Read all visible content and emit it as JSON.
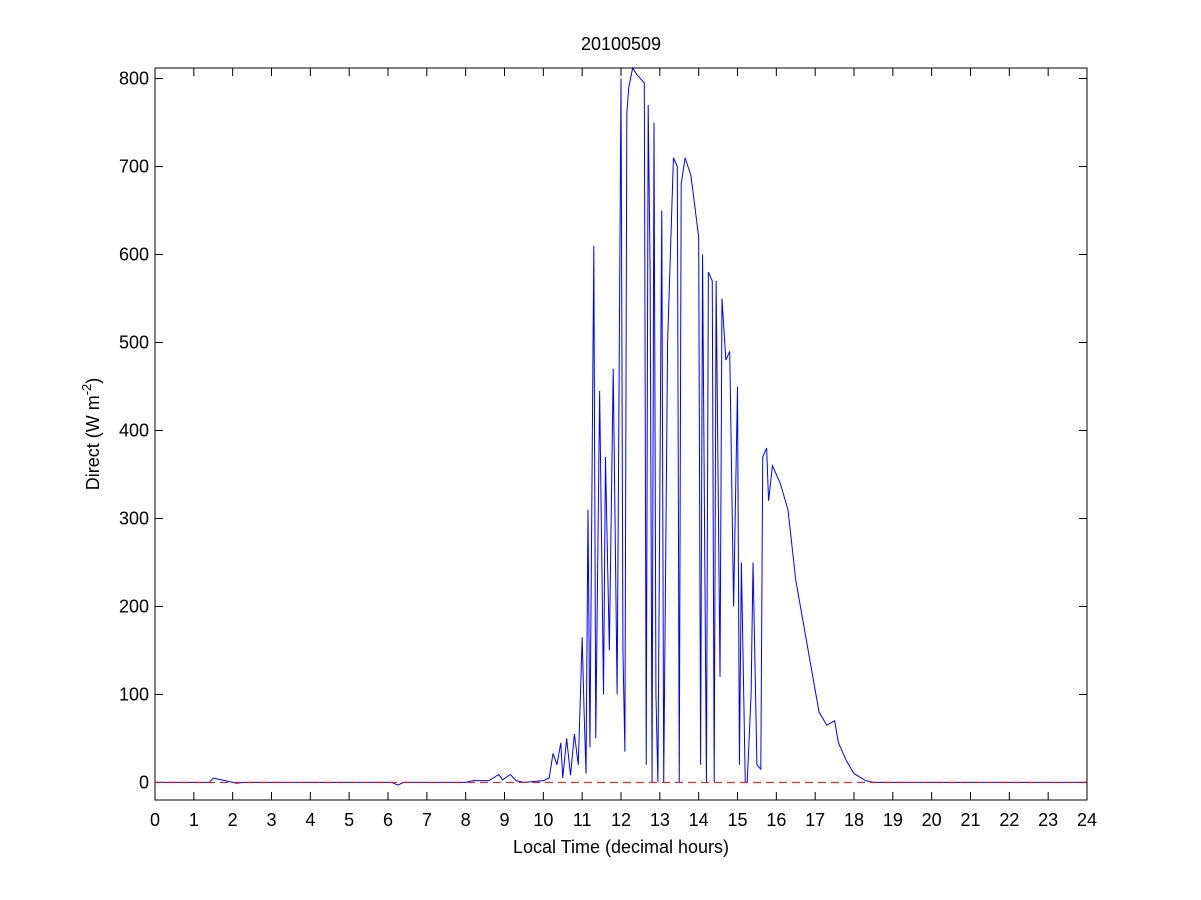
{
  "chart_data": {
    "type": "line",
    "title": "20100509",
    "x_label": "Local Time (decimal hours)",
    "y_label": [
      "Direct (W m",
      "-2",
      ")"
    ],
    "xlim": [
      0,
      24
    ],
    "xticks": [
      0,
      1,
      2,
      3,
      4,
      5,
      6,
      7,
      8,
      9,
      10,
      11,
      12,
      13,
      14,
      15,
      16,
      17,
      18,
      19,
      20,
      21,
      22,
      23,
      24
    ],
    "ylim": [
      -20,
      812
    ],
    "yticks": [
      0,
      100,
      200,
      300,
      400,
      500,
      600,
      700,
      800
    ],
    "series": [
      {
        "color": "#0000ff",
        "dashed": false,
        "x": [
          0,
          1.4,
          1.5,
          1.7,
          1.9,
          2.1,
          2.3,
          6.1,
          6.25,
          6.4,
          8.0,
          8.2,
          8.6,
          8.85,
          8.95,
          9.15,
          9.3,
          9.5,
          10.0,
          10.15,
          10.25,
          10.35,
          10.45,
          10.5,
          10.6,
          10.7,
          10.8,
          10.9,
          11.0,
          11.05,
          11.1,
          11.15,
          11.2,
          11.3,
          11.35,
          11.45,
          11.55,
          11.6,
          11.7,
          11.8,
          11.9,
          12.0,
          12.05,
          12.1,
          12.15,
          12.2,
          12.3,
          12.4,
          12.5,
          12.6,
          12.65,
          12.7,
          12.75,
          12.8,
          12.85,
          12.9,
          12.95,
          13.05,
          13.1,
          13.2,
          13.35,
          13.45,
          13.5,
          13.55,
          13.65,
          13.8,
          14.0,
          14.05,
          14.1,
          14.2,
          14.25,
          14.35,
          14.4,
          14.45,
          14.55,
          14.6,
          14.7,
          14.8,
          14.9,
          15.0,
          15.05,
          15.1,
          15.2,
          15.25,
          15.35,
          15.4,
          15.5,
          15.6,
          15.65,
          15.75,
          15.8,
          15.9,
          16.1,
          16.3,
          16.5,
          16.7,
          16.9,
          17.1,
          17.3,
          17.5,
          17.6,
          17.8,
          18.0,
          18.3,
          18.5,
          24
        ],
        "values": [
          0,
          0,
          5,
          3,
          1,
          -1,
          0,
          0,
          -3,
          0,
          0,
          2,
          2,
          9,
          3,
          9,
          2,
          0,
          2,
          5,
          33,
          20,
          45,
          5,
          50,
          8,
          55,
          20,
          165,
          80,
          10,
          310,
          40,
          610,
          50,
          445,
          100,
          370,
          150,
          470,
          100,
          800,
          150,
          35,
          760,
          790,
          812,
          805,
          800,
          795,
          20,
          770,
          580,
          0,
          750,
          100,
          0,
          650,
          0,
          500,
          710,
          700,
          0,
          680,
          710,
          690,
          620,
          20,
          600,
          0,
          580,
          570,
          0,
          570,
          120,
          550,
          480,
          490,
          200,
          450,
          20,
          250,
          0,
          0,
          100,
          250,
          20,
          15,
          370,
          380,
          320,
          360,
          340,
          310,
          230,
          180,
          130,
          80,
          65,
          70,
          45,
          25,
          10,
          2,
          0,
          0
        ]
      },
      {
        "color": "#ff0000",
        "dashed": true,
        "x": [
          0,
          24
        ],
        "values": [
          0,
          0
        ]
      }
    ]
  }
}
